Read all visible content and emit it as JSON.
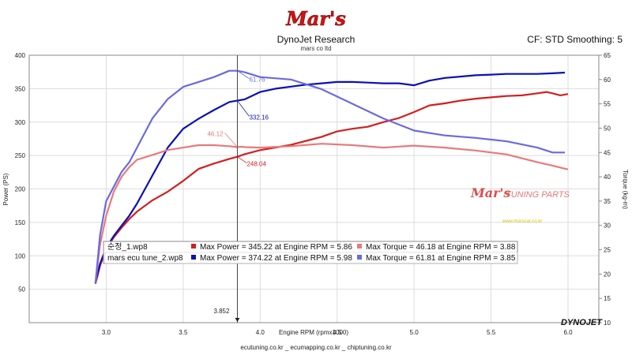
{
  "header": {
    "title": "DynoJet Research",
    "subtitle": "mars co ltd",
    "cf_label": "CF: STD Smoothing: 5"
  },
  "logo_text": "Mar's",
  "watermark": {
    "logo_text": "Mar's",
    "tuning_text": "TUNING PARTS",
    "url_text": "www.marscar.co.kr"
  },
  "dynojet_logo": "DYNOJET",
  "footer": "ecutuning.co.kr _ ecumapping.co.kr _ chiptuning.co.kr",
  "cursor_readout": "3.852",
  "colors": {
    "run1_power": "#d21f1f",
    "run1_torque": "#e87a7a",
    "run2_power": "#0a10b8",
    "run2_torque": "#6a6ae0",
    "grid": "#dcdcdc",
    "cursor": "#444444"
  },
  "legend": {
    "rows": [
      {
        "run": "순정_1.wp8",
        "power_text": "Max Power = 345.22 at Engine RPM = 5.86",
        "torque_text": "Max Torque = 46.18 at Engine RPM = 3.88",
        "power_color": "#d21f1f",
        "torque_color": "#e87a7a"
      },
      {
        "run": "mars ecu tune_2.wp8",
        "power_text": "Max Power = 374.22 at Engine RPM = 5.98",
        "torque_text": "Max Torque = 61.81 at Engine RPM = 3.85",
        "power_color": "#0a10b8",
        "torque_color": "#6a6ae0"
      }
    ]
  },
  "callouts": [
    {
      "text": "61.76",
      "series": "run2_torque"
    },
    {
      "text": "332.16",
      "series": "run2_power"
    },
    {
      "text": "46.12",
      "series": "run1_torque"
    },
    {
      "text": "248.04",
      "series": "run1_power"
    }
  ],
  "chart_data": {
    "type": "line",
    "xlabel": "Engine RPM (rpmx1000)",
    "ylabel_left": "Power (PS)",
    "ylabel_right": "Torque (kg-m)",
    "xlim": [
      2.5,
      6.2
    ],
    "ylim_left": [
      0,
      400
    ],
    "ylim_right": [
      10,
      65
    ],
    "x_ticks": [
      "3.0",
      "3.5",
      "4.0",
      "4.5",
      "5.0",
      "5.5",
      "6.0"
    ],
    "y_ticks_left": [
      "50",
      "100",
      "150",
      "200",
      "250",
      "300",
      "350",
      "400"
    ],
    "y_ticks_right": [
      "10",
      "15",
      "20",
      "25",
      "30",
      "35",
      "40",
      "45",
      "50",
      "55",
      "60",
      "65"
    ],
    "grid": true,
    "cursor_x": 3.852,
    "series": [
      {
        "name": "순정_1.wp8",
        "kind": "power",
        "axis": "left",
        "color": "#d21f1f",
        "x": [
          2.93,
          2.96,
          3.0,
          3.05,
          3.1,
          3.15,
          3.2,
          3.3,
          3.4,
          3.5,
          3.6,
          3.7,
          3.8,
          3.85,
          3.9,
          4.0,
          4.1,
          4.2,
          4.3,
          4.4,
          4.5,
          4.6,
          4.7,
          4.8,
          4.9,
          5.0,
          5.1,
          5.2,
          5.3,
          5.4,
          5.5,
          5.6,
          5.7,
          5.8,
          5.86,
          5.9,
          5.95,
          6.0
        ],
        "y": [
          58,
          85,
          110,
          128,
          142,
          155,
          166,
          183,
          196,
          212,
          230,
          238,
          245,
          248,
          252,
          258,
          262,
          266,
          272,
          278,
          286,
          290,
          293,
          300,
          306,
          315,
          325,
          328,
          332,
          335,
          337,
          339,
          340,
          343,
          345,
          343,
          340,
          342
        ]
      },
      {
        "name": "mars ecu tune_2.wp8",
        "kind": "power",
        "axis": "left",
        "color": "#0a10b8",
        "x": [
          2.93,
          2.96,
          3.0,
          3.05,
          3.1,
          3.15,
          3.2,
          3.3,
          3.4,
          3.5,
          3.6,
          3.7,
          3.8,
          3.85,
          3.9,
          4.0,
          4.1,
          4.2,
          4.3,
          4.4,
          4.5,
          4.6,
          4.7,
          4.8,
          4.9,
          5.0,
          5.1,
          5.2,
          5.3,
          5.4,
          5.5,
          5.6,
          5.7,
          5.8,
          5.9,
          5.98
        ],
        "y": [
          60,
          88,
          112,
          130,
          145,
          160,
          178,
          220,
          262,
          290,
          305,
          318,
          330,
          332,
          334,
          345,
          350,
          353,
          356,
          358,
          360,
          360,
          359,
          358,
          358,
          355,
          362,
          366,
          368,
          370,
          371,
          372,
          372,
          372,
          373,
          374
        ]
      },
      {
        "name": "순정_1.wp8",
        "kind": "torque",
        "axis": "right",
        "color": "#e87a7a",
        "x": [
          2.93,
          2.96,
          3.0,
          3.05,
          3.1,
          3.15,
          3.2,
          3.3,
          3.4,
          3.5,
          3.6,
          3.7,
          3.8,
          3.85,
          3.88,
          3.9,
          4.0,
          4.2,
          4.4,
          4.6,
          4.8,
          5.0,
          5.2,
          5.4,
          5.6,
          5.8,
          5.9,
          6.0
        ],
        "y": [
          18,
          26,
          32,
          37,
          40,
          42,
          43.5,
          44.5,
          45.5,
          46,
          46.5,
          46.5,
          46.3,
          46.1,
          46.18,
          46.1,
          46,
          46.3,
          46.8,
          46.5,
          46.0,
          46.4,
          46.0,
          45.4,
          44.6,
          43.0,
          42.3,
          41.5
        ]
      },
      {
        "name": "mars ecu tune_2.wp8",
        "kind": "torque",
        "axis": "right",
        "color": "#6a6ae0",
        "x": [
          2.93,
          2.96,
          3.0,
          3.05,
          3.1,
          3.15,
          3.2,
          3.3,
          3.4,
          3.5,
          3.6,
          3.7,
          3.8,
          3.85,
          3.9,
          4.0,
          4.2,
          4.4,
          4.6,
          4.8,
          5.0,
          5.2,
          5.4,
          5.6,
          5.8,
          5.9,
          5.98
        ],
        "y": [
          18,
          28,
          35,
          38,
          41,
          43,
          46,
          52,
          56,
          58.5,
          59.5,
          60.5,
          61.8,
          61.81,
          61.5,
          60.5,
          60.0,
          58.0,
          55.0,
          52.0,
          49.5,
          48.5,
          48.0,
          47.3,
          46.0,
          45.0,
          45.0
        ]
      }
    ]
  }
}
